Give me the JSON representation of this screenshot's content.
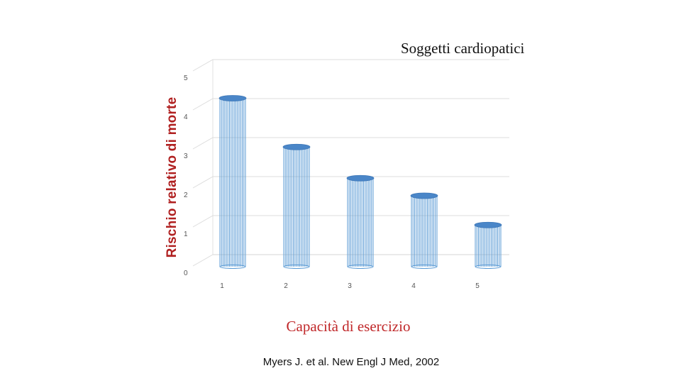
{
  "chart_data": {
    "type": "bar",
    "title": "Soggetti cardiopatici",
    "xlabel": "Capacità di esercizio",
    "ylabel": "Rischio relativo di morte",
    "categories": [
      "1",
      "2",
      "3",
      "4",
      "5"
    ],
    "values": [
      4.3,
      3.05,
      2.25,
      1.8,
      1.05
    ],
    "yticks": [
      "0",
      "1",
      "2",
      "3",
      "4",
      "5"
    ],
    "ylim": [
      0,
      5
    ],
    "grid": true,
    "legend": "none",
    "bar_color": "#5b9bd5",
    "bar_top_color": "#4a86c8"
  },
  "citation": "Myers J. et al. New Engl J Med, 2002"
}
